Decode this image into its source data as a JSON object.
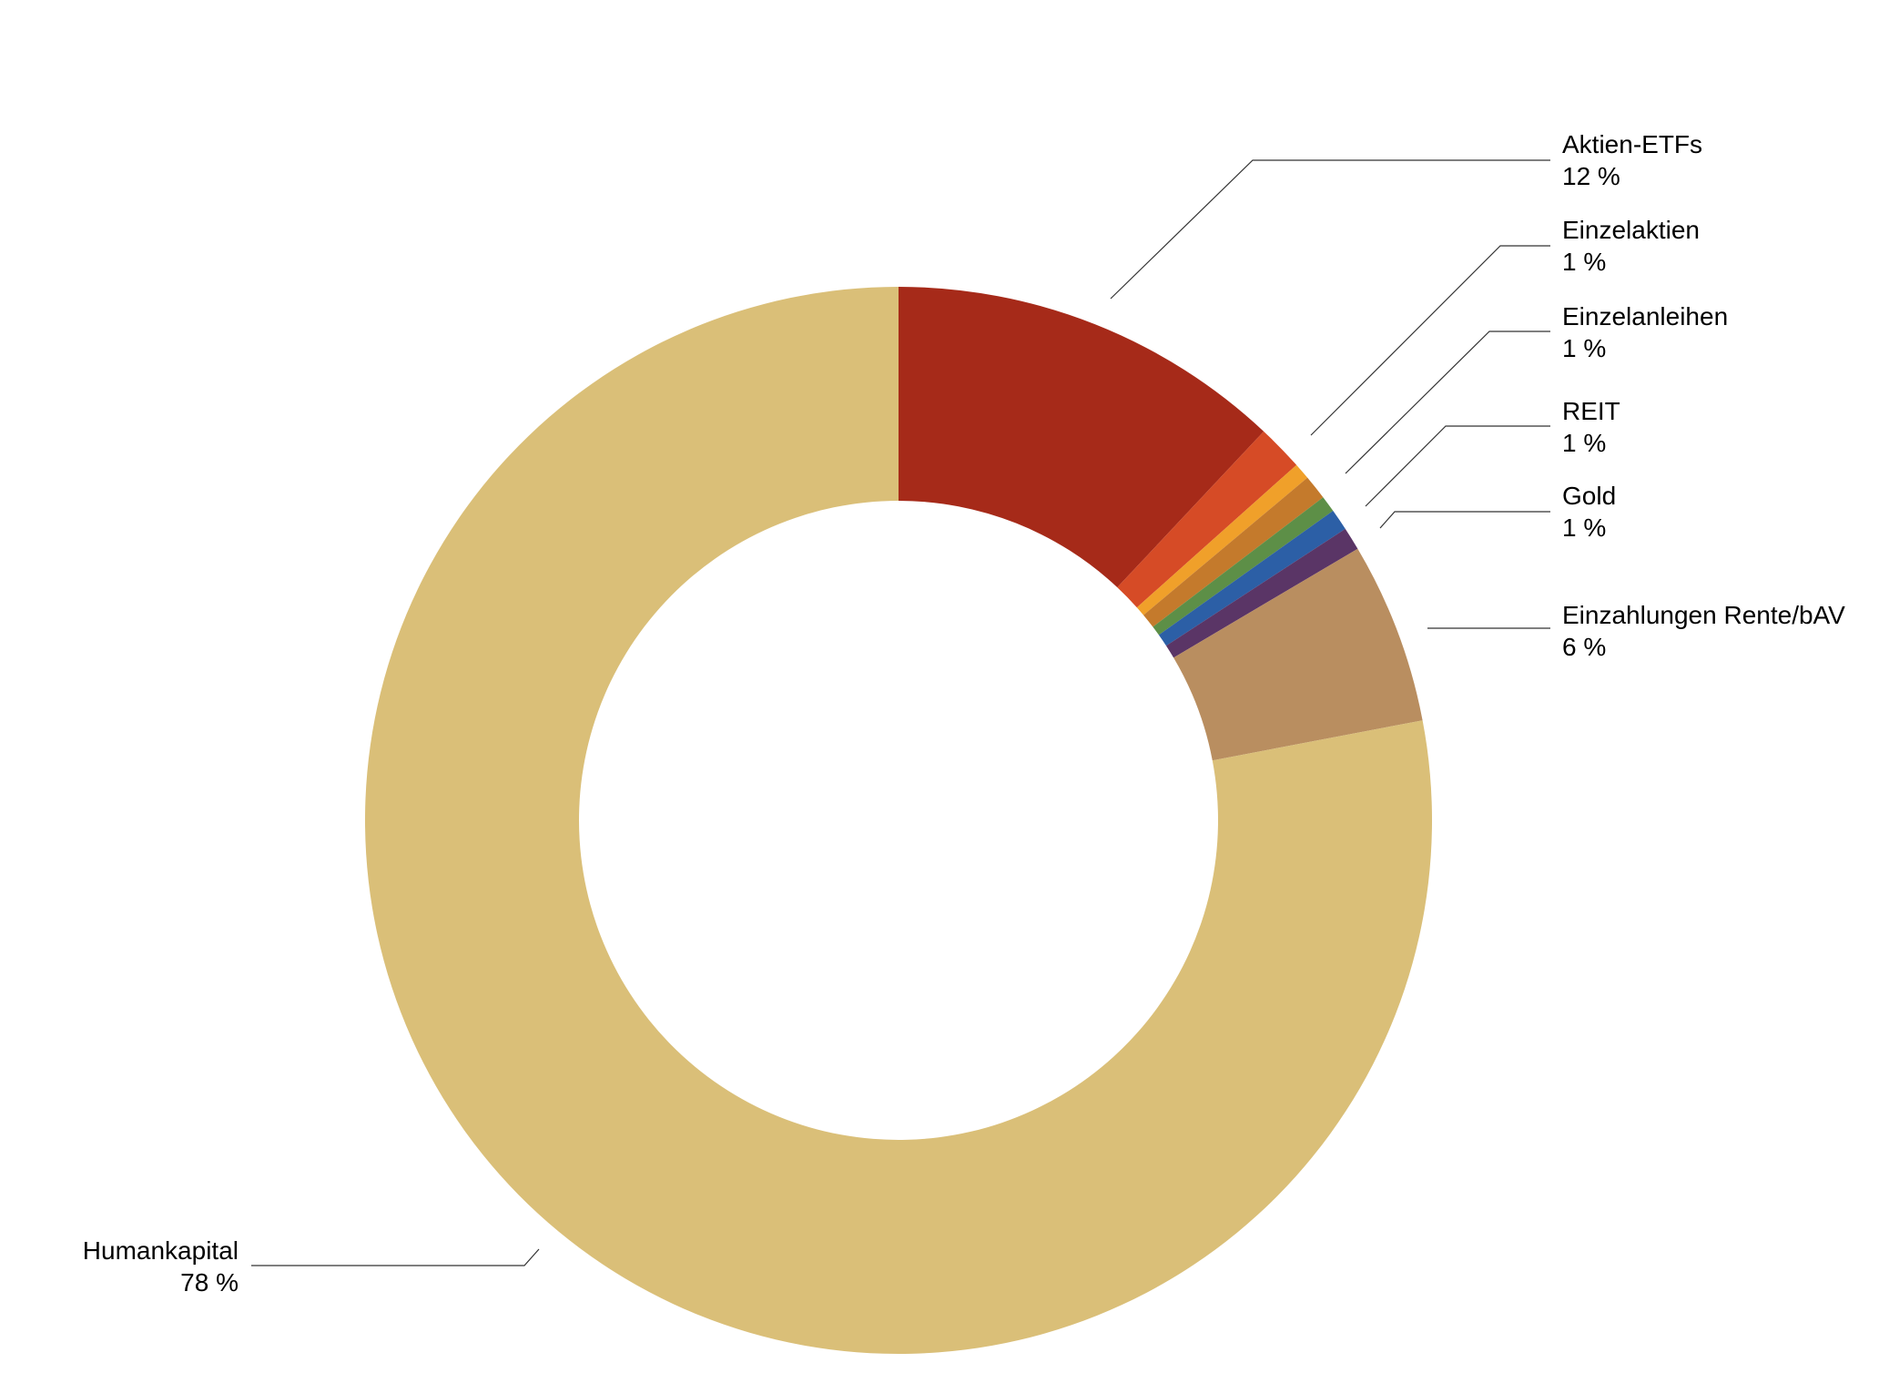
{
  "chart_data": {
    "type": "pie",
    "variant": "donut",
    "start_angle_deg": 0,
    "direction": "clockwise",
    "slices": [
      {
        "label": "Aktien-ETFs",
        "value_label": "12 %",
        "value": 12.0,
        "color": "#a62a19",
        "labeled": true
      },
      {
        "label": "Einzelaktien",
        "value_label": "1 %",
        "value": 1.4,
        "color": "#d64b26",
        "labeled": true
      },
      {
        "label": "Einzelanleihen",
        "value_label": "1 %",
        "value": 0.5,
        "color": "#f0a02a",
        "labeled": true
      },
      {
        "label": "REIT",
        "value_label": "1 %",
        "value": 0.75,
        "color": "#c47a2c",
        "labeled": true
      },
      {
        "label": "Gold",
        "value_label": "1 %",
        "value": 0.5,
        "color": "#5d8f47",
        "labeled": true
      },
      {
        "label": "",
        "value_label": "",
        "value": 0.65,
        "color": "#2c5fa6",
        "labeled": false
      },
      {
        "label": "",
        "value_label": "",
        "value": 0.7,
        "color": "#5a3566",
        "labeled": false
      },
      {
        "label": "Einzahlungen Rente/bAV",
        "value_label": "6 %",
        "value": 5.5,
        "color": "#b98e60",
        "labeled": true
      },
      {
        "label": "Humankapital",
        "value_label": "78 %",
        "value": 78.0,
        "color": "#dabf78",
        "labeled": true
      }
    ]
  }
}
